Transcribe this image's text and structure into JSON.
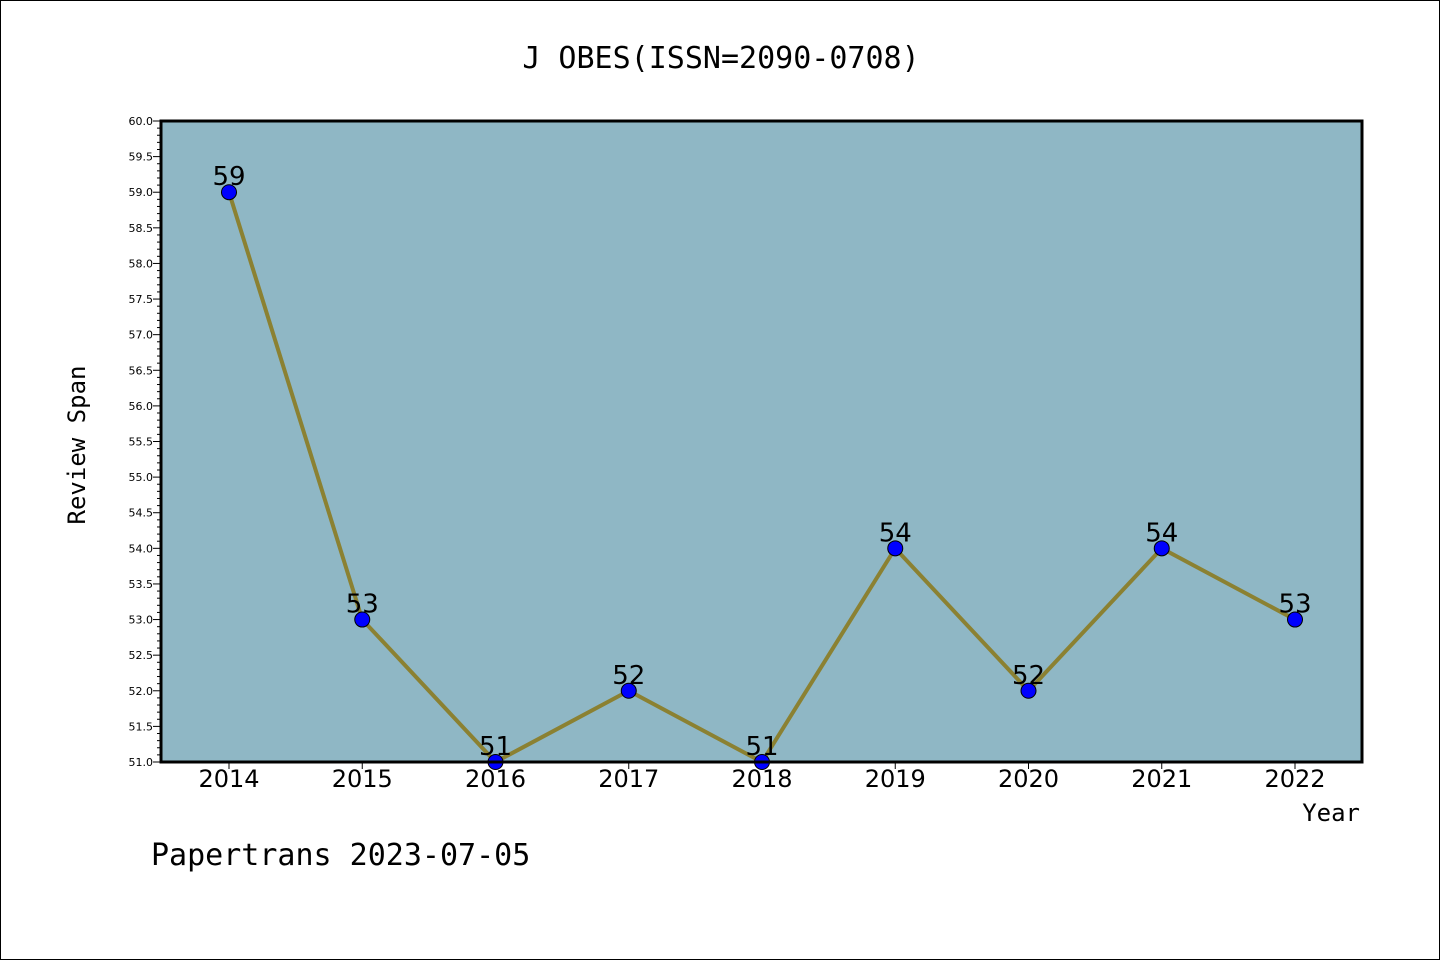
{
  "chart_data": {
    "type": "line",
    "title": "J OBES(ISSN=2090-0708)",
    "xlabel": "Year",
    "ylabel": "Review Span",
    "categories": [
      "2014",
      "2015",
      "2016",
      "2017",
      "2018",
      "2019",
      "2020",
      "2021",
      "2022"
    ],
    "values": [
      59,
      53,
      51,
      52,
      51,
      54,
      52,
      54,
      53
    ],
    "ylim": [
      51.0,
      60.0
    ],
    "yticks": [
      "51.0",
      "51.5",
      "52.0",
      "52.5",
      "53.0",
      "53.5",
      "54.0",
      "54.5",
      "55.0",
      "55.5",
      "56.0",
      "56.5",
      "57.0",
      "57.5",
      "58.0",
      "58.5",
      "59.0",
      "59.5",
      "60.0"
    ],
    "grid": false,
    "plot_background": "#8fb7c5",
    "line_color": "#8b8132",
    "marker_color": "#0000ff",
    "footer": "Papertrans 2023-07-05"
  }
}
